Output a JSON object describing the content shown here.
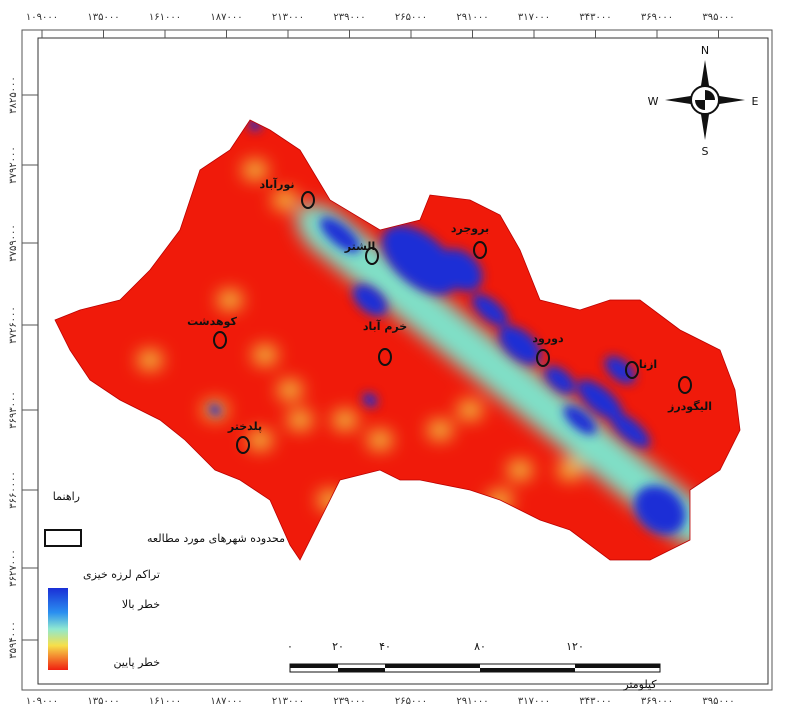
{
  "map": {
    "x_ticks": [
      "۱۰۹۰۰۰",
      "۱۳۵۰۰۰",
      "۱۶۱۰۰۰",
      "۱۸۷۰۰۰",
      "۲۱۳۰۰۰",
      "۲۳۹۰۰۰",
      "۲۶۵۰۰۰",
      "۲۹۱۰۰۰",
      "۳۱۷۰۰۰",
      "۳۴۳۰۰۰",
      "۳۶۹۰۰۰",
      "۳۹۵۰۰۰"
    ],
    "y_ticks": [
      "۳۸۲۵۰۰۰",
      "۳۷۹۲۰۰۰",
      "۳۷۵۹۰۰۰",
      "۳۷۲۶۰۰۰",
      "۳۶۹۳۰۰۰",
      "۳۶۶۰۰۰۰",
      "۳۶۲۷۰۰۰",
      "۳۵۹۴۰۰۰"
    ],
    "cities": [
      "نورآباد",
      "الشتر",
      "بروجرد",
      "کوهدشت",
      "خرم آباد",
      "دورود",
      "ازنا",
      "الیگودرز",
      "پلدختر"
    ],
    "compass": {
      "north": "N",
      "south": "S",
      "east": "E",
      "west": "W"
    },
    "legend": {
      "title": "راهنما",
      "study_area": "محدوده شهرهای مورد مطالعه",
      "density_title": "تراکم لرزه خیزی",
      "high": "خطر بالا",
      "low": "خطر پایین"
    },
    "scale_bar": {
      "labels": [
        "۰",
        "۲۰",
        "۴۰",
        "۸۰",
        "۱۲۰"
      ],
      "unit": "کیلومتر"
    }
  }
}
